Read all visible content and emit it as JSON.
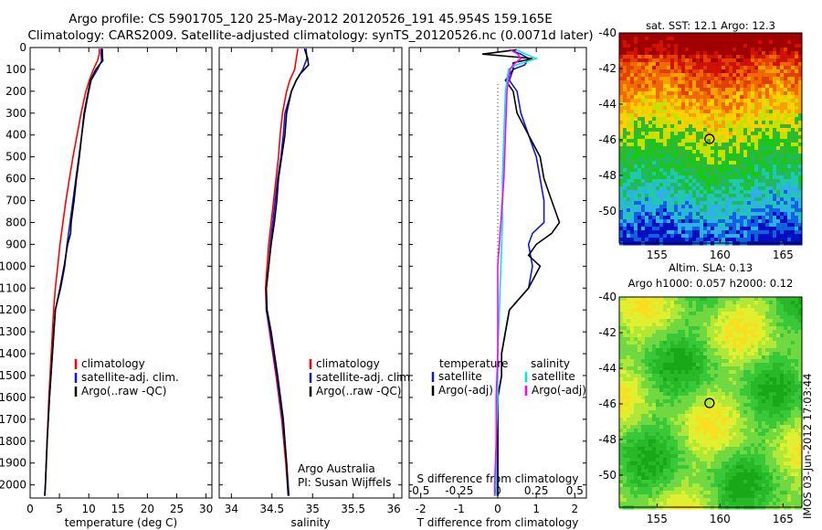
{
  "header": {
    "line1": "Argo profile: CS 5901705_120 25-May-2012 20120526_191 45.954S 159.165E",
    "line2": "Climatology: CARS2009. Satellite-adjusted climatology: synTS_20120526.nc (0.0071d later)"
  },
  "side_stamp": "IMOS 03-Jun-2012 17:03:44",
  "colors": {
    "climatology": "#ff0000",
    "satellite": "#1414dc",
    "argo": "#000000",
    "sat_salinity": "#00e6e6",
    "argo_salinity": "#ff00ff"
  },
  "chart_data": [
    {
      "type": "line",
      "id": "temperature",
      "xlabel": "temperature (deg C)",
      "ylabel": "",
      "xlim": [
        0,
        31
      ],
      "ylim": [
        2060,
        0
      ],
      "xticks": [
        0,
        5,
        10,
        15,
        20,
        25,
        30
      ],
      "yticks": [
        0,
        100,
        200,
        300,
        400,
        500,
        600,
        700,
        800,
        900,
        1000,
        1100,
        1200,
        1300,
        1400,
        1500,
        1600,
        1700,
        1800,
        1900,
        2000
      ],
      "legend": [
        "climatology",
        "satellite-adj. clim.",
        "Argo(..raw -QC)"
      ],
      "series": [
        {
          "name": "climatology",
          "color": "#ff0000",
          "depth": [
            5,
            30,
            60,
            100,
            150,
            200,
            300,
            400,
            500,
            600,
            700,
            800,
            900,
            1000,
            1100,
            1200,
            1400,
            1600,
            1800,
            2000,
            2050
          ],
          "values": [
            11.8,
            11.8,
            11.5,
            10.8,
            10.1,
            9.5,
            8.7,
            8.0,
            7.3,
            6.7,
            6.1,
            5.6,
            5.1,
            4.7,
            4.3,
            4.0,
            3.6,
            3.2,
            2.9,
            2.6,
            2.5
          ]
        },
        {
          "name": "satellite-adj. clim.",
          "color": "#1414dc",
          "depth": [
            5,
            30,
            60,
            100,
            150,
            200,
            300,
            400,
            500,
            600,
            700,
            800,
            900,
            1000,
            1100,
            1200,
            1400,
            1600,
            1800,
            2000,
            2050
          ],
          "values": [
            12.1,
            12.1,
            12.2,
            11.5,
            10.4,
            10.0,
            9.3,
            8.8,
            8.3,
            7.8,
            7.3,
            6.8,
            6.3,
            5.9,
            5.2,
            4.3,
            3.8,
            3.3,
            2.9,
            2.6,
            2.5
          ]
        },
        {
          "name": "Argo(..raw -QC)",
          "color": "#000000",
          "depth": [
            5,
            30,
            60,
            80,
            100,
            150,
            200,
            300,
            400,
            500,
            600,
            700,
            800,
            850,
            900,
            1000,
            1100,
            1200,
            1400,
            1600,
            1800,
            2000,
            2050
          ],
          "values": [
            12.3,
            12.3,
            12.4,
            11.8,
            11.2,
            10.3,
            9.9,
            9.2,
            8.8,
            8.4,
            7.9,
            7.5,
            7.0,
            6.9,
            6.4,
            5.8,
            5.1,
            4.3,
            3.8,
            3.3,
            2.9,
            2.6,
            2.5
          ]
        }
      ]
    },
    {
      "type": "line",
      "id": "salinity",
      "xlabel": "salinity",
      "ylabel": "",
      "xlim": [
        33.85,
        36.1
      ],
      "ylim": [
        2060,
        0
      ],
      "xticks": [
        34,
        34.5,
        35,
        35.5,
        36
      ],
      "legend": [
        "climatology",
        "satellite-adj. clim.",
        "Argo(..raw -QC)"
      ],
      "annotations": [
        "Argo Australia",
        "PI: Susan Wijffels"
      ],
      "series": [
        {
          "name": "climatology",
          "color": "#ff0000",
          "depth": [
            5,
            50,
            100,
            150,
            200,
            300,
            400,
            500,
            600,
            700,
            800,
            900,
            1000,
            1100,
            1200,
            1300,
            1500,
            1700,
            1900,
            2050
          ],
          "values": [
            34.82,
            34.8,
            34.78,
            34.72,
            34.68,
            34.63,
            34.6,
            34.58,
            34.55,
            34.52,
            34.49,
            34.46,
            34.44,
            34.42,
            34.43,
            34.47,
            34.55,
            34.62,
            34.67,
            34.7
          ]
        },
        {
          "name": "satellite-adj. clim.",
          "color": "#1414dc",
          "depth": [
            5,
            50,
            100,
            150,
            200,
            300,
            400,
            500,
            600,
            700,
            800,
            900,
            1000,
            1100,
            1200,
            1300,
            1500,
            1700,
            1900,
            2050
          ],
          "values": [
            34.92,
            34.93,
            34.88,
            34.8,
            34.74,
            34.66,
            34.64,
            34.61,
            34.57,
            34.54,
            34.51,
            34.48,
            34.46,
            34.43,
            34.43,
            34.48,
            34.56,
            34.63,
            34.68,
            34.71
          ]
        },
        {
          "name": "Argo(..raw -QC)",
          "color": "#000000",
          "depth": [
            5,
            50,
            80,
            120,
            150,
            200,
            300,
            400,
            500,
            600,
            700,
            800,
            900,
            1000,
            1100,
            1200,
            1300,
            1500,
            1700,
            1900,
            2050
          ],
          "values": [
            34.9,
            34.94,
            34.95,
            34.85,
            34.8,
            34.74,
            34.68,
            34.66,
            34.62,
            34.58,
            34.56,
            34.53,
            34.49,
            34.46,
            34.43,
            34.44,
            34.49,
            34.57,
            34.64,
            34.68,
            34.7
          ]
        }
      ]
    },
    {
      "type": "line",
      "id": "differences",
      "xlabel": "T difference from climatology",
      "xlabel_top": "S difference from climatology",
      "xlim": [
        -2.3,
        2.3
      ],
      "ylim": [
        2060,
        0
      ],
      "xticks": [
        -2,
        -1,
        0,
        1,
        2
      ],
      "xtick_labels_top": [
        "-0.5",
        "-0.25",
        "0",
        "0.25",
        "0.5"
      ],
      "legend_titles": [
        "temperature",
        "salinity"
      ],
      "legend": [
        "satellite",
        "Argo(-adj)",
        "satellite",
        "Argo(-adj)"
      ],
      "series": [
        {
          "name": "satellite",
          "group": "temperature",
          "color": "#1414dc",
          "depth": [
            10,
            30,
            50,
            80,
            100,
            150,
            200,
            300,
            400,
            500,
            600,
            700,
            800,
            850,
            900,
            1000,
            1100,
            1200,
            1300,
            1400,
            1500,
            1600,
            1700,
            1800,
            2000,
            2050
          ],
          "values": [
            0.3,
            0.6,
            0.8,
            0.7,
            0.4,
            0.3,
            0.5,
            0.6,
            0.8,
            1.0,
            1.1,
            1.2,
            1.2,
            0.9,
            0.8,
            0.9,
            0.8,
            0.3,
            0.2,
            0.1,
            0.1,
            0.0,
            0.0,
            0.0,
            0.0,
            0.0
          ]
        },
        {
          "name": "Argo(-adj)",
          "group": "temperature",
          "color": "#000000",
          "depth": [
            10,
            30,
            50,
            70,
            100,
            150,
            200,
            300,
            400,
            500,
            600,
            700,
            800,
            850,
            900,
            950,
            1000,
            1100,
            1200,
            1300,
            1400,
            1500,
            1600,
            1700,
            1800,
            2000,
            2050
          ],
          "values": [
            0.5,
            -0.4,
            0.9,
            0.4,
            0.4,
            0.2,
            0.4,
            0.5,
            0.8,
            1.1,
            1.2,
            1.4,
            1.6,
            1.4,
            1.0,
            0.8,
            1.1,
            0.8,
            0.3,
            0.2,
            0.1,
            0.1,
            0.0,
            0.0,
            0.0,
            0.0,
            0.0
          ]
        },
        {
          "name": "satellite",
          "group": "salinity",
          "color": "#00e6e6",
          "depth": [
            10,
            30,
            50,
            80,
            100,
            200,
            400,
            600,
            800,
            1000,
            1200,
            1400,
            1600,
            1800,
            2000,
            2050
          ],
          "values": [
            0.12,
            0.18,
            0.25,
            0.12,
            0.07,
            0.05,
            0.04,
            0.03,
            0.03,
            0.02,
            0.01,
            0.0,
            0.0,
            -0.01,
            -0.01,
            -0.01
          ]
        },
        {
          "name": "Argo(-adj)",
          "group": "salinity",
          "color": "#ff00ff",
          "depth": [
            10,
            30,
            50,
            80,
            100,
            200,
            400,
            600,
            800,
            1000,
            1200,
            1400,
            1600,
            1800,
            2000,
            2050
          ],
          "values": [
            0.08,
            0.13,
            0.15,
            0.1,
            0.08,
            0.06,
            0.05,
            0.04,
            0.02,
            0.0,
            0.0,
            0.0,
            -0.01,
            -0.01,
            -0.02,
            -0.02
          ]
        }
      ]
    },
    {
      "type": "heatmap",
      "id": "sst_map",
      "title": "sat. SST: 12.1  Argo: 12.3",
      "xlim": [
        152,
        166.5
      ],
      "ylim": [
        -51.8,
        -40
      ],
      "xticks": [
        155,
        160,
        165
      ],
      "yticks": [
        -40,
        -42,
        -44,
        -46,
        -48,
        -50
      ],
      "marker": {
        "lon": 159.165,
        "lat": -45.954
      }
    },
    {
      "type": "heatmap",
      "id": "sla_map",
      "title": "Altim. SLA: 0.13",
      "subtitle": "Argo h1000: 0.057 h2000: 0.12",
      "xlim": [
        152,
        166.5
      ],
      "ylim": [
        -51.8,
        -40
      ],
      "xticks": [
        155,
        160,
        165
      ],
      "yticks": [
        -40,
        -42,
        -44,
        -46,
        -48,
        -50
      ],
      "marker": {
        "lon": 159.165,
        "lat": -45.954
      }
    }
  ]
}
